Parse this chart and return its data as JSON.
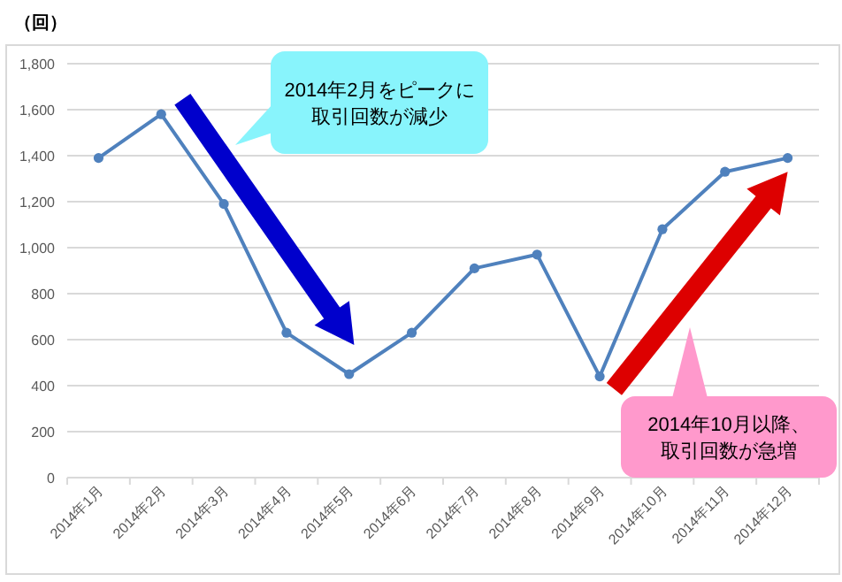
{
  "chart_data": {
    "type": "line",
    "ylabel": "（回）",
    "categories": [
      "2014年1月",
      "2014年2月",
      "2014年3月",
      "2014年4月",
      "2014年5月",
      "2014年6月",
      "2014年7月",
      "2014年8月",
      "2014年9月",
      "2014年10月",
      "2014年11月",
      "2014年12月"
    ],
    "series": [
      {
        "color": "#4f81bd",
        "values": [
          1390,
          1580,
          1190,
          630,
          450,
          630,
          910,
          970,
          440,
          1080,
          1330,
          1390
        ]
      }
    ],
    "ylim": [
      0,
      1800
    ],
    "yticks": [
      {
        "value": 0,
        "label": "0"
      },
      {
        "value": 200,
        "label": "200"
      },
      {
        "value": 400,
        "label": "400"
      },
      {
        "value": 600,
        "label": "600"
      },
      {
        "value": 800,
        "label": "800"
      },
      {
        "value": 1000,
        "label": "1,000"
      },
      {
        "value": 1200,
        "label": "1,200"
      },
      {
        "value": 1400,
        "label": "1,400"
      },
      {
        "value": 1600,
        "label": "1,600"
      },
      {
        "value": 1800,
        "label": "1,800"
      }
    ],
    "grid": "y",
    "marker": "circle",
    "line_style": "solid",
    "annotations": [
      "2014年2月をピークに",
      "取引回数が減少",
      "2014年10月以降、",
      "取引回数が急増"
    ]
  }
}
